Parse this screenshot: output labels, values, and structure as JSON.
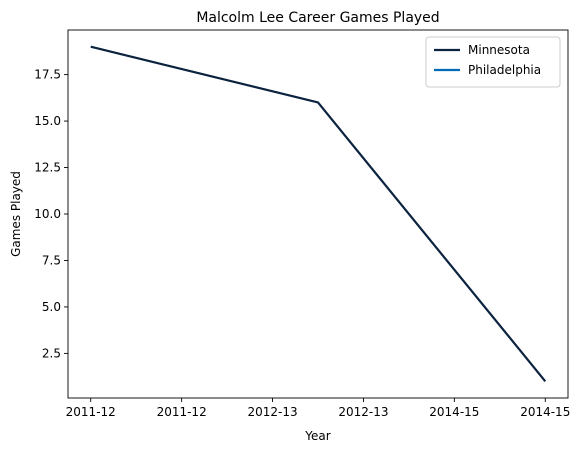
{
  "chart_data": {
    "type": "line",
    "title": "Malcolm Lee  Career Games Played",
    "xlabel": "Year",
    "ylabel": "Games Played",
    "x_tick_labels": [
      "2011-12",
      "2011-12",
      "2012-13",
      "2012-13",
      "2014-15",
      "2014-15"
    ],
    "x_tick_positions": [
      0,
      1,
      2,
      3,
      4,
      5
    ],
    "xlim": [
      -0.25,
      5.25
    ],
    "y_ticks": [
      2.5,
      5.0,
      7.5,
      10.0,
      12.5,
      15.0,
      17.5
    ],
    "y_tick_labels": [
      "2.5",
      "5.0",
      "7.5",
      "10.0",
      "12.5",
      "15.0",
      "17.5"
    ],
    "ylim": [
      0.1,
      19.9
    ],
    "grid": false,
    "legend_position": "top-right",
    "series": [
      {
        "name": "Minnesota",
        "color": "#0c2340",
        "x": [
          0,
          2.5,
          5
        ],
        "y": [
          19,
          16,
          1
        ]
      },
      {
        "name": "Philadelphia",
        "color": "#006bb6",
        "x": [],
        "y": []
      }
    ]
  }
}
